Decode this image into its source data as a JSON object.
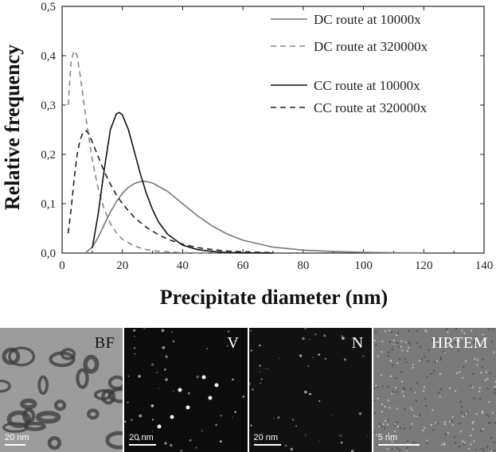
{
  "chart_data": {
    "type": "line",
    "xlabel": "Precipitate diameter (nm)",
    "ylabel": "Relative frequency",
    "xlim": [
      0,
      140
    ],
    "ylim": [
      0,
      0.5
    ],
    "x_ticks": [
      "0",
      "20",
      "40",
      "60",
      "80",
      "100",
      "120",
      "140"
    ],
    "y_ticks": [
      "0,0",
      "0,1",
      "0,2",
      "0,3",
      "0,4",
      "0,5"
    ],
    "grid": false,
    "legend_position": "top-right",
    "series": [
      {
        "name": "DC route at 10000x",
        "color": "#777777",
        "dash": "solid",
        "x": [
          8,
          10,
          12,
          14,
          16,
          18,
          20,
          22,
          24,
          26,
          28,
          30,
          35,
          40,
          45,
          50,
          55,
          60,
          70,
          80,
          90,
          100,
          110,
          120
        ],
        "y": [
          0.002,
          0.012,
          0.032,
          0.058,
          0.083,
          0.104,
          0.121,
          0.133,
          0.141,
          0.145,
          0.145,
          0.142,
          0.125,
          0.1,
          0.075,
          0.054,
          0.038,
          0.026,
          0.012,
          0.006,
          0.003,
          0.0015,
          0.0007,
          0.0003
        ]
      },
      {
        "name": "DC route at 320000x",
        "color": "#888888",
        "dash": "dashed",
        "x": [
          2,
          3,
          4,
          5,
          6,
          8,
          10,
          12,
          14,
          16,
          18,
          20,
          24,
          28,
          32,
          40,
          50,
          60
        ],
        "y": [
          0.3,
          0.39,
          0.41,
          0.4,
          0.36,
          0.27,
          0.19,
          0.13,
          0.088,
          0.06,
          0.041,
          0.028,
          0.014,
          0.007,
          0.0035,
          0.001,
          0.0002,
          0.0
        ]
      },
      {
        "name": "CC route at 10000x",
        "color": "#111111",
        "dash": "solid",
        "x": [
          10,
          12,
          14,
          16,
          18,
          19,
          20,
          22,
          24,
          26,
          28,
          30,
          32,
          35,
          40,
          45,
          50,
          55,
          60,
          70
        ],
        "y": [
          0.01,
          0.08,
          0.17,
          0.25,
          0.282,
          0.285,
          0.28,
          0.25,
          0.205,
          0.16,
          0.12,
          0.088,
          0.063,
          0.038,
          0.016,
          0.007,
          0.003,
          0.0012,
          0.0005,
          0.0001
        ]
      },
      {
        "name": "CC route at 320000x",
        "color": "#222222",
        "dash": "dashed",
        "x": [
          2,
          3,
          4,
          5,
          6,
          7,
          8,
          9,
          10,
          12,
          14,
          16,
          18,
          20,
          24,
          28,
          32,
          36,
          40,
          45,
          50,
          55,
          60,
          70
        ],
        "y": [
          0.04,
          0.09,
          0.15,
          0.2,
          0.23,
          0.245,
          0.248,
          0.24,
          0.225,
          0.195,
          0.165,
          0.14,
          0.118,
          0.1,
          0.072,
          0.052,
          0.037,
          0.026,
          0.018,
          0.011,
          0.007,
          0.004,
          0.0025,
          0.0008
        ]
      }
    ]
  },
  "micrographs": [
    {
      "label": "BF",
      "scale": "20 nm",
      "bg": "#9c9c9c",
      "label_color": "#111111"
    },
    {
      "label": "V",
      "scale": "20 nm",
      "bg": "#0c0c0c",
      "label_color": "#ffffff"
    },
    {
      "label": "N",
      "scale": "20 nm",
      "bg": "#111111",
      "label_color": "#ffffff"
    },
    {
      "label": "HRTEM",
      "scale": "5 nm",
      "bg": "#7a7a7a",
      "label_color": "#ffffff"
    }
  ]
}
